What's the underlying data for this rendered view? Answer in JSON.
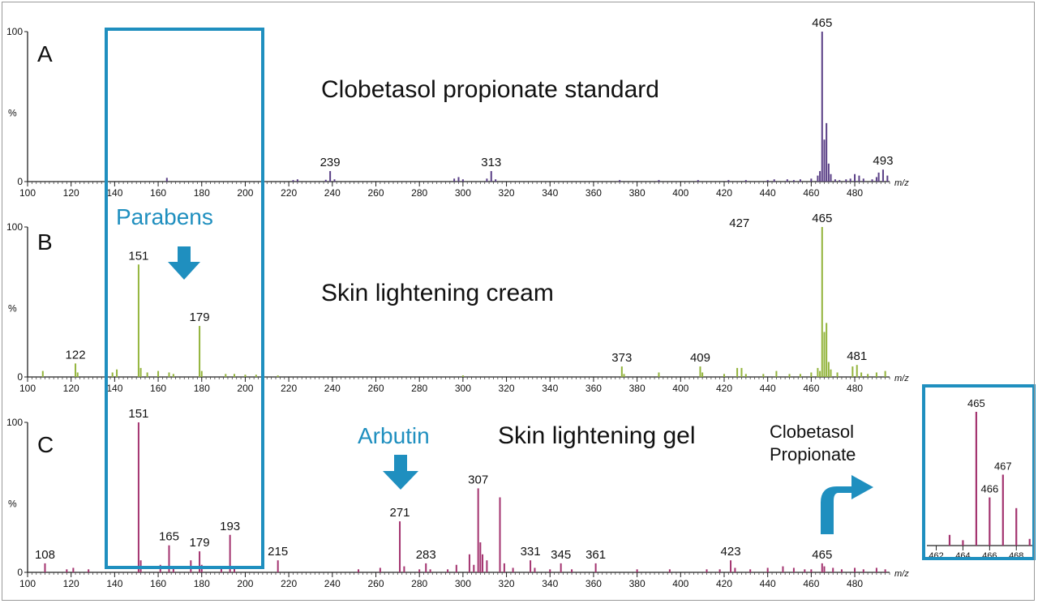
{
  "figure": {
    "highlight_box_label": "Parabens",
    "arbutin_label": "Arbutin",
    "clobetasol_label_line1": "Clobetasol",
    "clobetasol_label_line2": "Propionate",
    "accent_color": "#1f8fbf"
  },
  "chart_data": [
    {
      "panel": "A",
      "type": "bar",
      "title": "Clobetasol propionate standard",
      "xlabel": "m/z",
      "ylabel": "%",
      "xlim": [
        100,
        496
      ],
      "ylim": [
        0,
        100
      ],
      "x_ticks": [
        100,
        120,
        140,
        160,
        180,
        200,
        220,
        240,
        260,
        280,
        300,
        320,
        340,
        360,
        380,
        400,
        420,
        440,
        460,
        480
      ],
      "y_ticks": [
        0,
        100
      ],
      "color": "#5a3f86",
      "peaks": [
        [
          164,
          2.5
        ],
        [
          222,
          1
        ],
        [
          224,
          1.5
        ],
        [
          237,
          1.2
        ],
        [
          239,
          7
        ],
        [
          241,
          1.5
        ],
        [
          296,
          2
        ],
        [
          298,
          3
        ],
        [
          300,
          1.5
        ],
        [
          311,
          2
        ],
        [
          313,
          7
        ],
        [
          315,
          1.5
        ],
        [
          372,
          1
        ],
        [
          390,
          1
        ],
        [
          408,
          1
        ],
        [
          422,
          1
        ],
        [
          430,
          1
        ],
        [
          440,
          1
        ],
        [
          443,
          1.5
        ],
        [
          449,
          1.5
        ],
        [
          452,
          1
        ],
        [
          455,
          1.5
        ],
        [
          460,
          2
        ],
        [
          463,
          4
        ],
        [
          464,
          7
        ],
        [
          465,
          100
        ],
        [
          466,
          28
        ],
        [
          467,
          39
        ],
        [
          468,
          12
        ],
        [
          469,
          5
        ],
        [
          471,
          1.5
        ],
        [
          473,
          1
        ],
        [
          476,
          1.5
        ],
        [
          478,
          2
        ],
        [
          480,
          5
        ],
        [
          482,
          4
        ],
        [
          484,
          2
        ],
        [
          488,
          1.5
        ],
        [
          490,
          3
        ],
        [
          491,
          6
        ],
        [
          493,
          8
        ],
        [
          495,
          4
        ]
      ],
      "labels": [
        [
          465,
          "465"
        ],
        [
          239,
          "239"
        ],
        [
          313,
          "313"
        ],
        [
          493,
          "493"
        ]
      ]
    },
    {
      "panel": "B",
      "type": "bar",
      "title": "Skin lightening cream",
      "xlabel": "m/z",
      "ylabel": "%",
      "xlim": [
        100,
        496
      ],
      "ylim": [
        0,
        100
      ],
      "x_ticks": [
        100,
        120,
        140,
        160,
        180,
        200,
        220,
        240,
        260,
        280,
        300,
        320,
        340,
        360,
        380,
        400,
        420,
        440,
        460,
        480
      ],
      "y_ticks": [
        0,
        100
      ],
      "color": "#93b43c",
      "peaks": [
        [
          107,
          4
        ],
        [
          122,
          9
        ],
        [
          123,
          3
        ],
        [
          139,
          3
        ],
        [
          141,
          5
        ],
        [
          151,
          75
        ],
        [
          152,
          6
        ],
        [
          155,
          3
        ],
        [
          160,
          4
        ],
        [
          165,
          3
        ],
        [
          167,
          2
        ],
        [
          179,
          34
        ],
        [
          180,
          4
        ],
        [
          191,
          2
        ],
        [
          195,
          2
        ],
        [
          200,
          1.5
        ],
        [
          205,
          1.5
        ],
        [
          215,
          1
        ],
        [
          300,
          1
        ],
        [
          373,
          7
        ],
        [
          374,
          2
        ],
        [
          390,
          3
        ],
        [
          409,
          7
        ],
        [
          410,
          3
        ],
        [
          420,
          2
        ],
        [
          426,
          6
        ],
        [
          428,
          6
        ],
        [
          430,
          2
        ],
        [
          438,
          2
        ],
        [
          444,
          4
        ],
        [
          450,
          2
        ],
        [
          455,
          2
        ],
        [
          460,
          3
        ],
        [
          463,
          6
        ],
        [
          464,
          4
        ],
        [
          465,
          100
        ],
        [
          466,
          30
        ],
        [
          467,
          36
        ],
        [
          468,
          10
        ],
        [
          469,
          5
        ],
        [
          472,
          3
        ],
        [
          479,
          7
        ],
        [
          481,
          8
        ],
        [
          483,
          3
        ],
        [
          486,
          2
        ],
        [
          490,
          3
        ],
        [
          494,
          4
        ]
      ],
      "labels": [
        [
          465,
          "465"
        ],
        [
          151,
          "151"
        ],
        [
          179,
          "179"
        ],
        [
          122,
          "122"
        ],
        [
          373,
          "373"
        ],
        [
          409,
          "409"
        ],
        [
          427,
          "427"
        ],
        [
          481,
          "481"
        ]
      ]
    },
    {
      "panel": "C",
      "type": "bar",
      "title": "Skin lightening gel",
      "xlabel": "m/z",
      "ylabel": "%",
      "xlim": [
        100,
        496
      ],
      "ylim": [
        0,
        100
      ],
      "x_ticks": [
        100,
        120,
        140,
        160,
        180,
        200,
        220,
        240,
        260,
        280,
        300,
        320,
        340,
        360,
        380,
        400,
        420,
        440,
        460,
        480
      ],
      "y_ticks": [
        0,
        100
      ],
      "color": "#a3336f",
      "peaks": [
        [
          108,
          6
        ],
        [
          118,
          2
        ],
        [
          121,
          3
        ],
        [
          128,
          2
        ],
        [
          151,
          100
        ],
        [
          152,
          8
        ],
        [
          161,
          5
        ],
        [
          165,
          18
        ],
        [
          167,
          4
        ],
        [
          175,
          8
        ],
        [
          179,
          14
        ],
        [
          180,
          5
        ],
        [
          189,
          3
        ],
        [
          193,
          25
        ],
        [
          195,
          4
        ],
        [
          215,
          8
        ],
        [
          252,
          2
        ],
        [
          262,
          3
        ],
        [
          271,
          34
        ],
        [
          273,
          4
        ],
        [
          280,
          2
        ],
        [
          283,
          6
        ],
        [
          285,
          2
        ],
        [
          293,
          2
        ],
        [
          297,
          5
        ],
        [
          303,
          12
        ],
        [
          305,
          5
        ],
        [
          307,
          56
        ],
        [
          308,
          20
        ],
        [
          309,
          12
        ],
        [
          311,
          8
        ],
        [
          317,
          50
        ],
        [
          319,
          6
        ],
        [
          323,
          3
        ],
        [
          331,
          8
        ],
        [
          333,
          3
        ],
        [
          340,
          2
        ],
        [
          345,
          6
        ],
        [
          350,
          2
        ],
        [
          361,
          6
        ],
        [
          380,
          2
        ],
        [
          395,
          2
        ],
        [
          412,
          2
        ],
        [
          418,
          2
        ],
        [
          423,
          8
        ],
        [
          425,
          3
        ],
        [
          432,
          2
        ],
        [
          440,
          3
        ],
        [
          447,
          4
        ],
        [
          452,
          3
        ],
        [
          457,
          2
        ],
        [
          460,
          2
        ],
        [
          465,
          6
        ],
        [
          466,
          4
        ],
        [
          470,
          3
        ],
        [
          474,
          2
        ],
        [
          480,
          3
        ],
        [
          484,
          2
        ],
        [
          490,
          3
        ],
        [
          494,
          2
        ]
      ],
      "labels": [
        [
          151,
          "151"
        ],
        [
          307,
          "307"
        ],
        [
          271,
          "271"
        ],
        [
          193,
          "193"
        ],
        [
          165,
          "165"
        ],
        [
          179,
          "179"
        ],
        [
          108,
          "108"
        ],
        [
          215,
          "215"
        ],
        [
          283,
          "283"
        ],
        [
          331,
          "331"
        ],
        [
          345,
          "345"
        ],
        [
          361,
          "361"
        ],
        [
          423,
          "423"
        ],
        [
          465,
          "465"
        ]
      ]
    },
    {
      "panel": "inset",
      "type": "bar",
      "xlim": [
        461.3,
        469.2
      ],
      "ylim": [
        0,
        100
      ],
      "x_ticks": [
        462,
        464,
        466,
        468
      ],
      "color": "#a3336f",
      "peaks": [
        [
          463,
          8
        ],
        [
          464,
          4
        ],
        [
          465,
          100
        ],
        [
          466,
          36
        ],
        [
          467,
          53
        ],
        [
          468,
          28
        ],
        [
          469,
          5
        ]
      ],
      "labels": [
        [
          465,
          "465"
        ],
        [
          466,
          "466"
        ],
        [
          467,
          "467"
        ]
      ]
    }
  ]
}
